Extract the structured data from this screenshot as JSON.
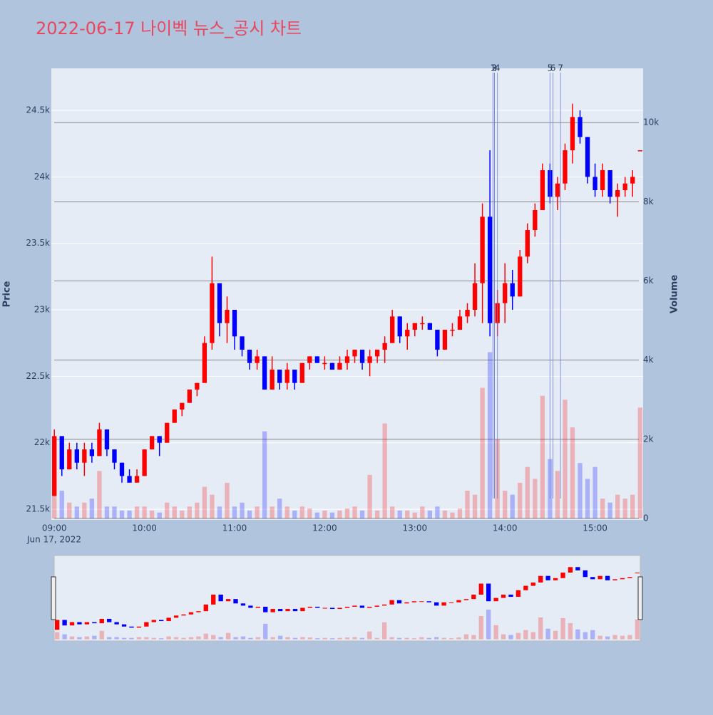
{
  "chart_data": {
    "type": "candlestick",
    "title": "2022-06-17 나이벡 뉴스_공시 차트",
    "y_label": "Price",
    "y2_label": "Volume",
    "x_date_label": "Jun 17, 2022",
    "up_color": "#ff0000",
    "down_color": "#0000ff",
    "xlim": [
      "08:58",
      "15:32"
    ],
    "xticks": [
      "09:00",
      "10:00",
      "11:00",
      "12:00",
      "13:00",
      "14:00",
      "15:00"
    ],
    "ylim": [
      21420,
      24816
    ],
    "yticks": [
      {
        "value": 21500,
        "label": "21.5k"
      },
      {
        "value": 22000,
        "label": "22k"
      },
      {
        "value": 22500,
        "label": "22.5k"
      },
      {
        "value": 23000,
        "label": "23k"
      },
      {
        "value": 23500,
        "label": "23.5k"
      },
      {
        "value": 24000,
        "label": "24k"
      },
      {
        "value": 24500,
        "label": "24.5k"
      }
    ],
    "y2lim": [
      -36,
      11370
    ],
    "y2ticks": [
      0,
      {
        "value": 2000,
        "label": "2k"
      },
      {
        "value": 4000,
        "label": "4k"
      },
      {
        "value": 6000,
        "label": "6k"
      },
      {
        "value": 8000,
        "label": "8k"
      },
      {
        "value": 10000,
        "label": "10k"
      }
    ],
    "x": [
      "09:00",
      "09:05",
      "09:10",
      "09:15",
      "09:20",
      "09:25",
      "09:30",
      "09:35",
      "09:40",
      "09:45",
      "09:50",
      "09:55",
      "10:00",
      "10:05",
      "10:10",
      "10:15",
      "10:20",
      "10:25",
      "10:30",
      "10:35",
      "10:40",
      "10:45",
      "10:50",
      "10:55",
      "11:00",
      "11:05",
      "11:10",
      "11:15",
      "11:20",
      "11:25",
      "11:30",
      "11:35",
      "11:40",
      "11:45",
      "11:50",
      "11:55",
      "12:00",
      "12:05",
      "12:10",
      "12:15",
      "12:20",
      "12:25",
      "12:30",
      "12:35",
      "12:40",
      "12:45",
      "12:50",
      "12:55",
      "13:00",
      "13:05",
      "13:10",
      "13:15",
      "13:20",
      "13:25",
      "13:30",
      "13:35",
      "13:40",
      "13:45",
      "13:50",
      "13:55",
      "14:00",
      "14:05",
      "14:10",
      "14:15",
      "14:20",
      "14:25",
      "14:30",
      "14:35",
      "14:40",
      "14:45",
      "14:50",
      "14:55",
      "15:00",
      "15:05",
      "15:10",
      "15:15",
      "15:20",
      "15:25",
      "15:30"
    ],
    "open": [
      21600,
      22050,
      21800,
      21950,
      21850,
      21950,
      21900,
      22100,
      21950,
      21850,
      21750,
      21700,
      21750,
      21950,
      22050,
      22000,
      22150,
      22250,
      22300,
      22400,
      22450,
      22750,
      23200,
      22900,
      23000,
      22800,
      22700,
      22600,
      22650,
      22400,
      22550,
      22450,
      22550,
      22450,
      22600,
      22650,
      22600,
      22600,
      22550,
      22600,
      22650,
      22700,
      22600,
      22650,
      22700,
      22750,
      22950,
      22800,
      22850,
      22900,
      22900,
      22850,
      22700,
      22850,
      22850,
      22950,
      23000,
      23200,
      23700,
      22900,
      23050,
      23200,
      23100,
      23400,
      23600,
      23750,
      24050,
      23850,
      23950,
      24200,
      24450,
      24300,
      24000,
      23900,
      24050,
      23850,
      23900,
      23950,
      24200
    ],
    "high": [
      22100,
      22050,
      22000,
      22000,
      22000,
      22000,
      22150,
      22100,
      21950,
      21850,
      21800,
      21800,
      21950,
      22050,
      22050,
      22150,
      22250,
      22300,
      22400,
      22450,
      22800,
      23400,
      23200,
      23100,
      23000,
      22800,
      22700,
      22700,
      22650,
      22650,
      22550,
      22600,
      22550,
      22600,
      22650,
      22650,
      22650,
      22600,
      22650,
      22700,
      22700,
      22700,
      22700,
      22700,
      22800,
      23000,
      22950,
      22900,
      22900,
      22950,
      22900,
      22850,
      22850,
      22900,
      23000,
      23050,
      23350,
      23800,
      24200,
      23150,
      23350,
      23300,
      23450,
      23650,
      23800,
      24100,
      24100,
      24000,
      24250,
      24550,
      24500,
      24300,
      24100,
      24100,
      24050,
      23950,
      24000,
      24050,
      24200
    ],
    "low": [
      21600,
      21750,
      21800,
      21800,
      21750,
      21850,
      21900,
      21900,
      21800,
      21700,
      21700,
      21700,
      21750,
      21950,
      21900,
      22000,
      22150,
      22200,
      22300,
      22350,
      22450,
      22700,
      22800,
      22750,
      22700,
      22650,
      22550,
      22550,
      22400,
      22400,
      22400,
      22400,
      22400,
      22450,
      22550,
      22600,
      22550,
      22550,
      22550,
      22550,
      22600,
      22550,
      22500,
      22600,
      22600,
      22750,
      22750,
      22700,
      22800,
      22850,
      22850,
      22650,
      22700,
      22800,
      22850,
      22900,
      22950,
      22900,
      22800,
      22800,
      22900,
      23000,
      23100,
      23350,
      23550,
      23750,
      23800,
      23750,
      23900,
      24100,
      24250,
      23950,
      23850,
      23850,
      23800,
      23700,
      23850,
      23850,
      24200
    ],
    "close": [
      22050,
      21800,
      21950,
      21850,
      21950,
      21900,
      22100,
      21950,
      21850,
      21750,
      21700,
      21750,
      21950,
      22050,
      22000,
      22150,
      22250,
      22300,
      22400,
      22450,
      22750,
      23200,
      22900,
      23000,
      22800,
      22700,
      22600,
      22650,
      22400,
      22550,
      22450,
      22550,
      22450,
      22600,
      22650,
      22600,
      22600,
      22550,
      22600,
      22650,
      22700,
      22600,
      22650,
      22700,
      22750,
      22950,
      22800,
      22850,
      22900,
      22900,
      22850,
      22700,
      22850,
      22850,
      22950,
      23000,
      23200,
      23700,
      22900,
      23050,
      23200,
      23100,
      23400,
      23600,
      23750,
      24050,
      23850,
      23950,
      24200,
      24450,
      24300,
      24000,
      23900,
      24050,
      23850,
      23900,
      23950,
      24000,
      24200
    ],
    "volume": [
      1000,
      700,
      400,
      300,
      400,
      500,
      1200,
      300,
      300,
      200,
      200,
      300,
      300,
      200,
      150,
      400,
      300,
      200,
      300,
      400,
      800,
      600,
      300,
      900,
      300,
      400,
      200,
      300,
      2200,
      300,
      500,
      300,
      200,
      300,
      250,
      150,
      200,
      150,
      200,
      250,
      300,
      200,
      1100,
      200,
      2400,
      300,
      200,
      200,
      150,
      300,
      200,
      300,
      200,
      150,
      250,
      700,
      600,
      3300,
      4200,
      2000,
      700,
      600,
      900,
      1300,
      1000,
      3100,
      1500,
      1200,
      3000,
      2300,
      1400,
      1000,
      1300,
      500,
      400,
      600,
      500,
      600,
      2800
    ],
    "annotations": [
      {
        "x": "13:52",
        "label": "1"
      },
      {
        "x": "13:53",
        "label": "2"
      },
      {
        "x": "13:53",
        "label": "3"
      },
      {
        "x": "13:55",
        "label": "4"
      },
      {
        "x": "14:30",
        "label": "5"
      },
      {
        "x": "14:32",
        "label": "6"
      },
      {
        "x": "14:37",
        "label": "7"
      }
    ]
  }
}
